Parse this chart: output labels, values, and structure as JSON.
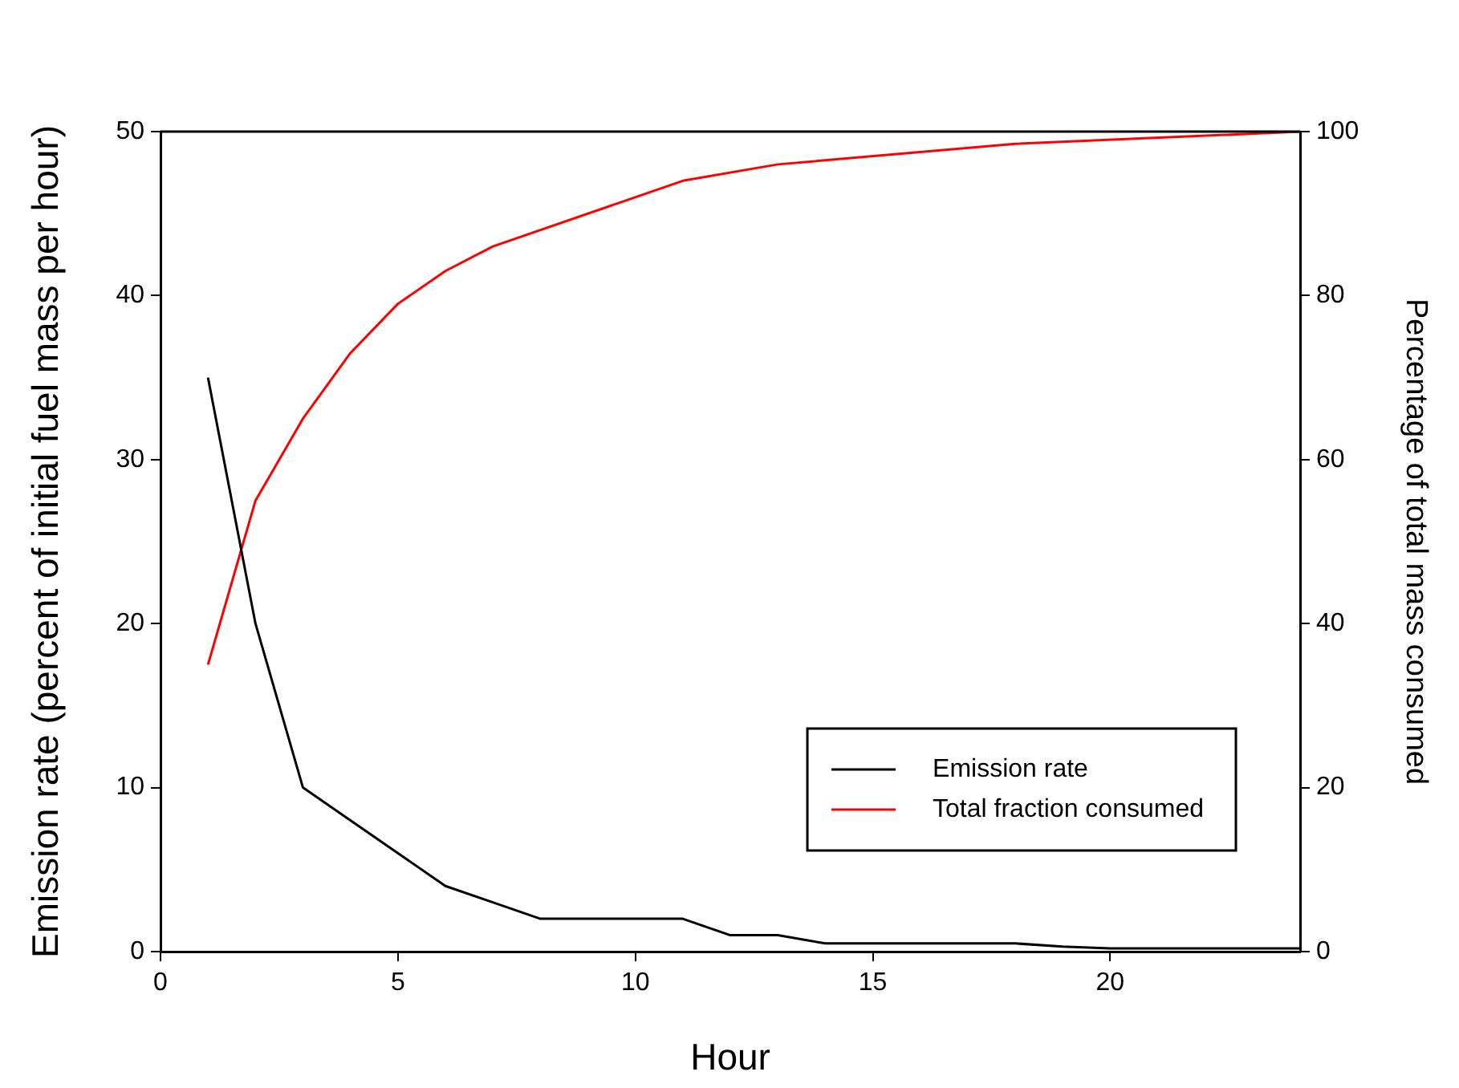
{
  "chart_data": {
    "type": "line",
    "xlabel": "Hour",
    "ylabel": "Emission rate (percent of initial fuel mass per hour)",
    "y2label": "Percentage of total mass consumed",
    "xlim": [
      0,
      24
    ],
    "xticks": [
      0,
      5,
      10,
      15,
      20
    ],
    "ylim": [
      0,
      50
    ],
    "yticks": [
      0,
      10,
      20,
      30,
      40,
      50
    ],
    "y2lim": [
      0,
      100
    ],
    "y2ticks": [
      0,
      20,
      40,
      60,
      80,
      100
    ],
    "grid": false,
    "legend": "bottom right",
    "marker": "none",
    "line_style": "solid",
    "series": [
      {
        "name": "Emission rate",
        "color": "#000000",
        "axis": "y",
        "x": [
          1,
          2,
          3,
          6,
          7,
          8,
          11,
          12,
          13,
          14,
          18,
          19,
          20,
          24
        ],
        "values": [
          35,
          20,
          10,
          4,
          3,
          2,
          2,
          1,
          1,
          0.5,
          0.5,
          0.3,
          0.2,
          0.2
        ]
      },
      {
        "name": "Total fraction consumed",
        "color": "#ff0000",
        "axis": "y2",
        "x": [
          1,
          2,
          3,
          4,
          5,
          6,
          7,
          11,
          13,
          18,
          24
        ],
        "values": [
          35,
          55,
          65,
          73,
          79,
          83,
          86,
          94,
          96,
          98.5,
          100
        ]
      }
    ]
  }
}
